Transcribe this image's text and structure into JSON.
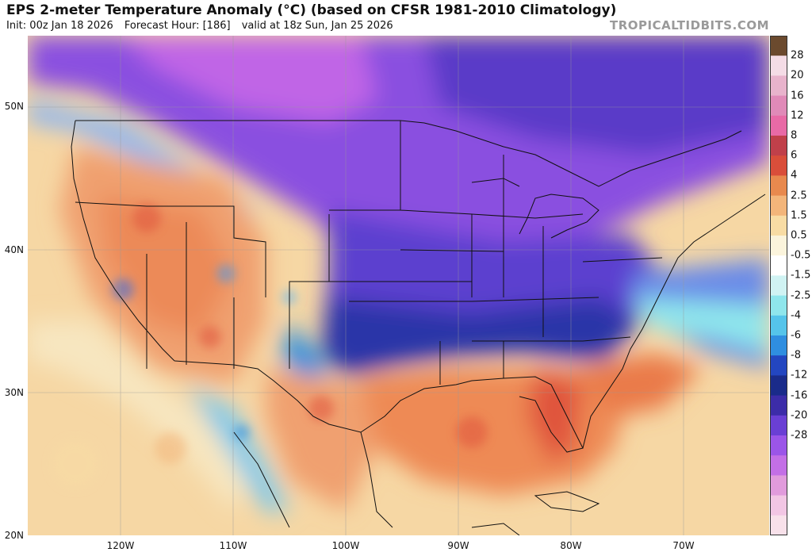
{
  "title": "EPS 2-meter Temperature Anomaly (°C) (based on CFSR 1981-2010 Climatology)",
  "subtitle": {
    "init": "Init: 00z Jan 18 2026",
    "forecast_hour": "Forecast Hour: [186]",
    "valid": "valid at 18z Sun, Jan 25 2026"
  },
  "credit": "TROPICALTIDBITS.COM",
  "map": {
    "latitude_labels": [
      "50N",
      "40N",
      "30N",
      "20N"
    ],
    "longitude_labels": [
      "120W",
      "110W",
      "100W",
      "90W",
      "80W",
      "70W"
    ]
  },
  "colorbar": {
    "labels": [
      "28",
      "20",
      "16",
      "12",
      "8",
      "6",
      "4",
      "2.5",
      "1.5",
      "0.5",
      "-0.5",
      "-1.5",
      "-2.5",
      "-4",
      "-6",
      "-8",
      "-12",
      "-16",
      "-20",
      "-28"
    ],
    "colors": [
      "#6b4a2e",
      "#f4dce6",
      "#e8b3cc",
      "#e08ab8",
      "#e86aa6",
      "#c0404a",
      "#d94e3a",
      "#e8894e",
      "#f3b57a",
      "#f8dca4",
      "#fbf4dc",
      "#ffffff",
      "#d0f3f3",
      "#8fe6ec",
      "#55c4ea",
      "#2f8ee0",
      "#2346c0",
      "#1a2b8a",
      "#3c2ca8",
      "#6a3fd4",
      "#9b55e8",
      "#c36fe6",
      "#e19bdc",
      "#f2c6e4",
      "#f8e1ea"
    ]
  }
}
